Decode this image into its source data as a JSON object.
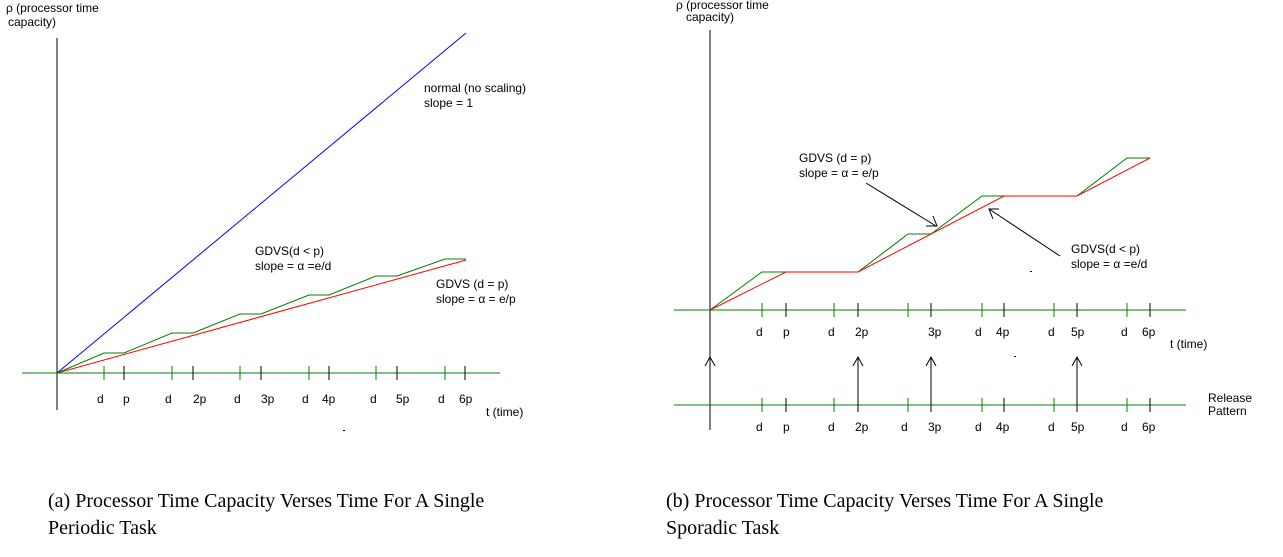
{
  "colors": {
    "axis": "#000000",
    "green": "#008000",
    "red": "#ff0000",
    "blue": "#0000ff"
  },
  "panel_a": {
    "y_axis_label_line1": "ρ (processor time",
    "y_axis_label_line2": "capacity)",
    "x_axis_label": "t (time)",
    "tick_labels": [
      "d",
      "p",
      "d",
      "2p",
      "d",
      "3p",
      "d",
      "4p",
      "d",
      "5p",
      "d",
      "6p"
    ],
    "normal_label": "normal (no scaling)",
    "normal_slope": "slope = 1",
    "gdvs_dltp_label": "GDVS(d < p)",
    "gdvs_dltp_slope": "slope = α =e/d",
    "gdvs_deqp_label": "GDVS (d = p)",
    "gdvs_deqp_slope": "slope = α =  e/p",
    "caption_line1": "(a) Processor Time Capacity Verses Time For A Single",
    "caption_line2": "Periodic Task"
  },
  "panel_b": {
    "y_axis_label_line1": "ρ (processor time",
    "y_axis_label_line2": "capacity)",
    "x_axis_label": "t (time)",
    "tick_labels": [
      "d",
      "p",
      "d",
      "2p",
      "3p",
      "d",
      "4p",
      "d",
      "5p",
      "d",
      "6p"
    ],
    "release_tick_labels": [
      "d",
      "p",
      "d",
      "2p",
      "d",
      "3p",
      "d",
      "4p",
      "d",
      "5p",
      "d",
      "6p"
    ],
    "release_label_line1": "Release",
    "release_label_line2": "Pattern",
    "gdvs_deqp_label": "GDVS (d = p)",
    "gdvs_deqp_slope": "slope = α =  e/p",
    "gdvs_dltp_label": "GDVS(d < p)",
    "gdvs_dltp_slope": "slope = α =e/d",
    "caption_line1": "(b) Processor Time Capacity Verses Time For A Single",
    "caption_line2": "Sporadic Task"
  }
}
